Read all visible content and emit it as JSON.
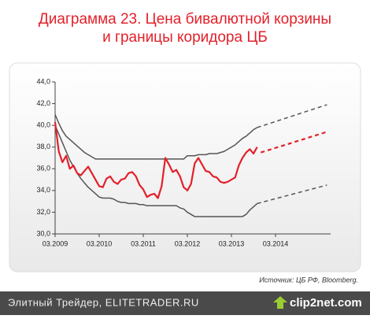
{
  "chart_data": {
    "type": "line",
    "title": [
      "Диаграмма 23. Цена бивалютной корзины",
      "и границы коридора ЦБ"
    ],
    "source": "Источник: ЦБ РФ, Bloomberg.",
    "xlim": [
      "03.2009",
      "06.2015"
    ],
    "xticks": [
      "03.2009",
      "03.2010",
      "03.2011",
      "03.2012",
      "03.2013",
      "03.2014"
    ],
    "ylim": [
      30,
      44
    ],
    "yticks": [
      {
        "value": 30,
        "label": "30,0"
      },
      {
        "value": 32,
        "label": "32,0"
      },
      {
        "value": 34,
        "label": "34,0"
      },
      {
        "value": 36,
        "label": "36,0"
      },
      {
        "value": 38,
        "label": "38,0"
      },
      {
        "value": 40,
        "label": "40,0"
      },
      {
        "value": 42,
        "label": "42,0"
      },
      {
        "value": 44,
        "label": "44,0"
      }
    ],
    "grid": false,
    "series": [
      {
        "color": "#555555",
        "line_style": "solid",
        "width": 1.5,
        "x": [
          "03.2009",
          "04.2009",
          "05.2009",
          "06.2009",
          "07.2009",
          "08.2009",
          "09.2009",
          "10.2009",
          "11.2009",
          "12.2009",
          "01.2010",
          "02.2010",
          "03.2010",
          "04.2010",
          "05.2010",
          "06.2010",
          "07.2010",
          "08.2010",
          "09.2010",
          "10.2010",
          "11.2010",
          "12.2010",
          "01.2011",
          "02.2011",
          "03.2011",
          "04.2011",
          "05.2011",
          "06.2011",
          "07.2011",
          "08.2011",
          "09.2011",
          "10.2011",
          "11.2011",
          "12.2011",
          "01.2012",
          "02.2012",
          "03.2012",
          "04.2012",
          "05.2012",
          "06.2012",
          "07.2012",
          "08.2012",
          "09.2012",
          "10.2012",
          "11.2012",
          "12.2012",
          "01.2013",
          "02.2013",
          "03.2013",
          "04.2013",
          "05.2013",
          "06.2013",
          "07.2013",
          "08.2013",
          "09.2013",
          "10.2013"
        ],
        "values": [
          41.0,
          40.2,
          39.5,
          39.0,
          38.7,
          38.4,
          38.1,
          37.8,
          37.5,
          37.3,
          37.1,
          36.9,
          36.9,
          36.9,
          36.9,
          36.9,
          36.9,
          36.9,
          36.9,
          36.9,
          36.9,
          36.9,
          36.9,
          36.9,
          36.9,
          36.9,
          36.9,
          36.9,
          36.9,
          36.9,
          36.9,
          36.9,
          36.9,
          36.9,
          36.9,
          36.9,
          37.2,
          37.2,
          37.2,
          37.3,
          37.3,
          37.3,
          37.4,
          37.4,
          37.4,
          37.5,
          37.6,
          37.8,
          38.0,
          38.2,
          38.5,
          38.8,
          39.0,
          39.3,
          39.6,
          39.8
        ]
      },
      {
        "color": "#555555",
        "line_style": "solid",
        "width": 1.5,
        "x": [
          "03.2009",
          "04.2009",
          "05.2009",
          "06.2009",
          "07.2009",
          "08.2009",
          "09.2009",
          "10.2009",
          "11.2009",
          "12.2009",
          "01.2010",
          "02.2010",
          "03.2010",
          "04.2010",
          "05.2010",
          "06.2010",
          "07.2010",
          "08.2010",
          "09.2010",
          "10.2010",
          "11.2010",
          "12.2010",
          "01.2011",
          "02.2011",
          "03.2011",
          "04.2011",
          "05.2011",
          "06.2011",
          "07.2011",
          "08.2011",
          "09.2011",
          "10.2011",
          "11.2011",
          "12.2011",
          "01.2012",
          "02.2012",
          "03.2012",
          "04.2012",
          "05.2012",
          "06.2012",
          "07.2012",
          "08.2012",
          "09.2012",
          "10.2012",
          "11.2012",
          "12.2012",
          "01.2013",
          "02.2013",
          "03.2013",
          "04.2013",
          "05.2013",
          "06.2013",
          "07.2013",
          "08.2013",
          "09.2013",
          "10.2013"
        ],
        "values": [
          40.0,
          39.2,
          38.4,
          37.6,
          36.8,
          36.2,
          35.6,
          35.1,
          34.7,
          34.3,
          34.0,
          33.7,
          33.4,
          33.3,
          33.3,
          33.3,
          33.2,
          33.0,
          32.9,
          32.9,
          32.8,
          32.8,
          32.8,
          32.7,
          32.7,
          32.6,
          32.6,
          32.6,
          32.6,
          32.6,
          32.6,
          32.6,
          32.6,
          32.6,
          32.4,
          32.3,
          32.0,
          31.8,
          31.6,
          31.6,
          31.6,
          31.6,
          31.6,
          31.6,
          31.6,
          31.6,
          31.6,
          31.6,
          31.6,
          31.6,
          31.6,
          31.6,
          31.8,
          32.2,
          32.5,
          32.8
        ]
      },
      {
        "color": "#e3202a",
        "line_style": "solid",
        "width": 2.2,
        "x": [
          "03.2009",
          "04.2009",
          "05.2009",
          "06.2009",
          "07.2009",
          "08.2009",
          "09.2009",
          "10.2009",
          "11.2009",
          "12.2009",
          "01.2010",
          "02.2010",
          "03.2010",
          "04.2010",
          "05.2010",
          "06.2010",
          "07.2010",
          "08.2010",
          "09.2010",
          "10.2010",
          "11.2010",
          "12.2010",
          "01.2011",
          "02.2011",
          "03.2011",
          "04.2011",
          "05.2011",
          "06.2011",
          "07.2011",
          "08.2011",
          "09.2011",
          "10.2011",
          "11.2011",
          "12.2011",
          "01.2012",
          "02.2012",
          "03.2012",
          "04.2012",
          "05.2012",
          "06.2012",
          "07.2012",
          "08.2012",
          "09.2012",
          "10.2012",
          "11.2012",
          "12.2012",
          "01.2013",
          "02.2013",
          "03.2013",
          "04.2013",
          "05.2013",
          "06.2013",
          "07.2013",
          "08.2013",
          "09.2013",
          "10.2013"
        ],
        "values": [
          40.3,
          37.6,
          36.6,
          37.2,
          36.0,
          36.3,
          35.6,
          35.4,
          35.8,
          36.2,
          35.6,
          35.0,
          34.4,
          34.3,
          35.1,
          35.3,
          34.8,
          34.6,
          35.0,
          35.1,
          35.6,
          35.7,
          35.3,
          34.5,
          34.1,
          33.4,
          33.6,
          33.7,
          33.3,
          34.4,
          37.0,
          36.4,
          35.7,
          35.9,
          35.3,
          34.3,
          34.0,
          34.6,
          36.5,
          37.0,
          36.4,
          35.8,
          35.7,
          35.3,
          35.2,
          34.8,
          34.7,
          34.8,
          35.0,
          35.2,
          36.3,
          37.0,
          37.5,
          37.8,
          37.4,
          38.0
        ]
      },
      {
        "color": "#555555",
        "line_style": "dashed",
        "width": 1.5,
        "x": [
          "10.2013",
          "05.2015"
        ],
        "values": [
          39.8,
          41.9
        ]
      },
      {
        "color": "#555555",
        "line_style": "dashed",
        "width": 1.5,
        "x": [
          "10.2013",
          "05.2015"
        ],
        "values": [
          32.8,
          34.5
        ]
      },
      {
        "color": "#e3202a",
        "line_style": "dashed",
        "width": 2.2,
        "x": [
          "11.2013",
          "05.2015"
        ],
        "values": [
          37.5,
          39.4
        ]
      }
    ]
  },
  "footer": {
    "site": "Элитный Трейдер, ELITETRADER.RU",
    "logo": "clip2net.com"
  }
}
